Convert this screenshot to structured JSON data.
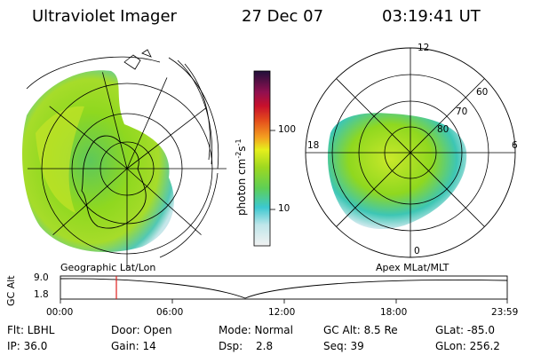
{
  "header": {
    "title": "Ultraviolet Imager",
    "date": "27 Dec 07",
    "time": "03:19:41 UT"
  },
  "colorbar": {
    "label_main": "photon cm",
    "label_exp1": "-2",
    "label_s": "s",
    "label_exp2": "-1",
    "ticks": [
      "100",
      "10"
    ]
  },
  "left_panel": {
    "caption": "Geographic Lat/Lon"
  },
  "right_panel": {
    "caption": "Apex MLat/MLT",
    "mlt_labels": [
      "12",
      "18",
      "6",
      "0"
    ],
    "lat_labels": [
      "60",
      "70",
      "80"
    ]
  },
  "altitude_plot": {
    "axis_label": "GC Alt",
    "y_ticks": [
      "9.0",
      "1.8"
    ],
    "x_ticks": [
      "00:00",
      "06:00",
      "12:00",
      "18:00",
      "23:59"
    ],
    "marker_color": "#e0201e"
  },
  "info": {
    "filter": "Flt: LBHL",
    "door": "Door: Open",
    "mode": "Mode: Normal",
    "gc_alt": "GC Alt: 8.5 Re",
    "glat": "GLat: -85.0",
    "ip": "IP: 36.0",
    "gain": "Gain: 14",
    "dsp_label": "Dsp:",
    "dsp_value": "2.8",
    "seq": "Seq: 39",
    "glon": "GLon: 256.2"
  },
  "colors": {
    "aurora_green": "#8fd81f",
    "aurora_yellow": "#d5ee22",
    "aurora_cyan": "#39c8c8",
    "aurora_pale": "#bfe3e6"
  }
}
